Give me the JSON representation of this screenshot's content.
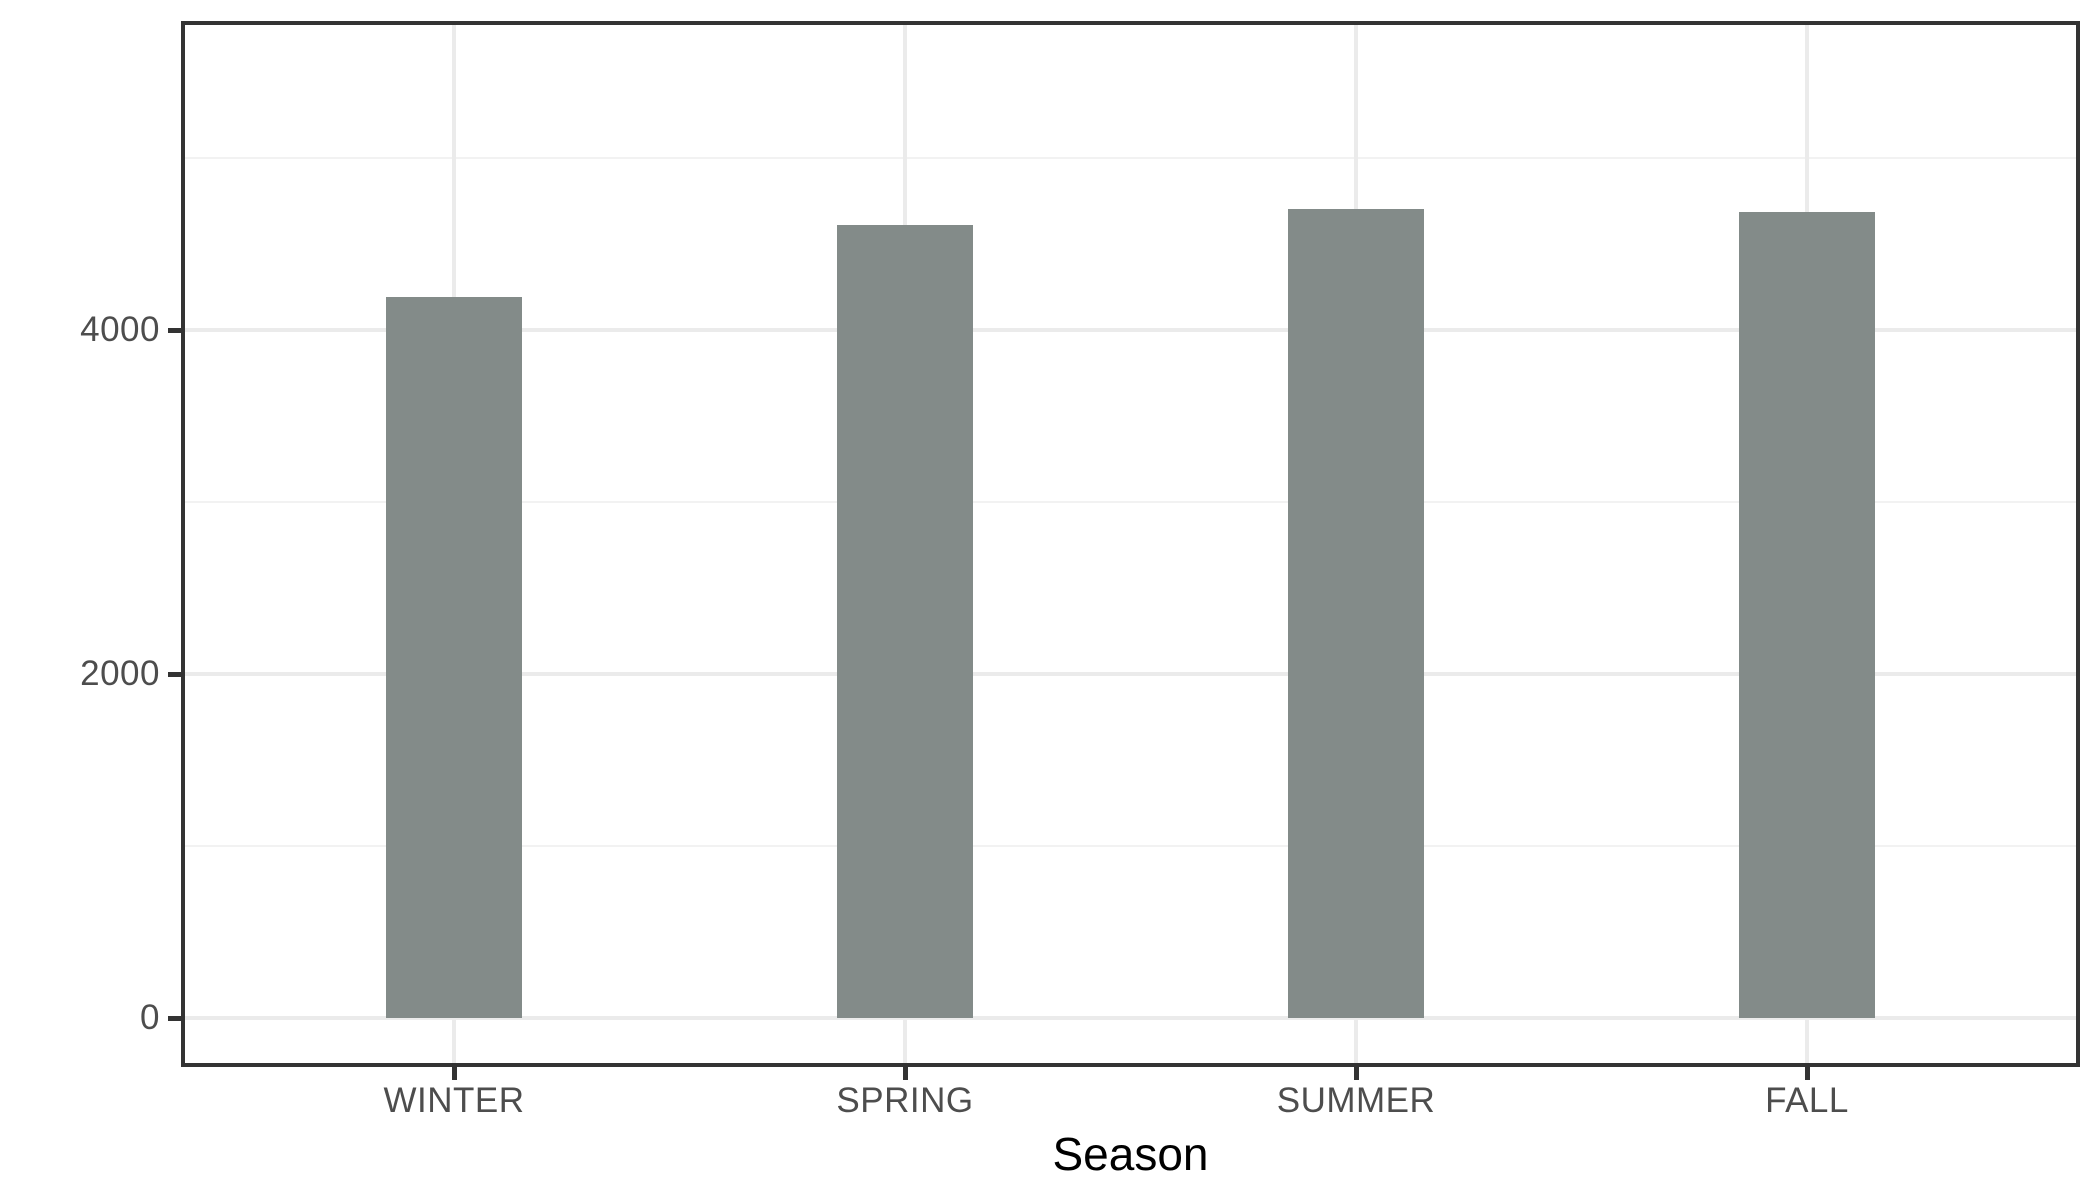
{
  "chart_data": {
    "type": "bar",
    "title": "",
    "xlabel": "Season",
    "ylabel": "",
    "categories": [
      "WINTER",
      "SPRING",
      "SUMMER",
      "FALL"
    ],
    "values": [
      4190,
      4610,
      4705,
      4685
    ],
    "ylim": [
      0,
      5785
    ],
    "y_axis": {
      "tick_values": [
        0,
        2000,
        4000
      ],
      "tick_labels": [
        "0",
        "2000",
        "4000"
      ],
      "minor_tick_values": [
        1000,
        3000,
        5000
      ]
    },
    "x_axis": {
      "tick_labels": [
        "WINTER",
        "SPRING",
        "SUMMER",
        "FALL"
      ]
    },
    "legend": false,
    "grid": "horizontal major+minor, vertical major at category centers",
    "bar_fill": "#838B89"
  },
  "colors": {
    "background": "#FFFFFF",
    "bar": "#838B89",
    "panel_border": "#333333",
    "grid_major": "#EBEBEB",
    "grid_minor": "#F2F2F2",
    "tick_mark": "#333333",
    "tick_label": "#4D4D4D",
    "axis_title": "#000000"
  }
}
